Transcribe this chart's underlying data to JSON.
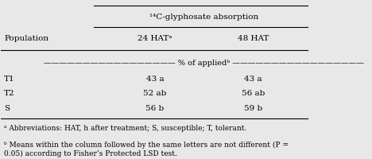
{
  "bg_color": "#e8e8e8",
  "header_main": "¹⁴C-glyphosate absorption",
  "col1_header": "Population",
  "col2_header": "24 HATᵃ",
  "col3_header": "48 HAT",
  "subheader": "————————————————— % of appliedᵇ —————————————————",
  "rows": [
    [
      "T1",
      "43 a",
      "43 a"
    ],
    [
      "T2",
      "52 ab",
      "56 ab"
    ],
    [
      "S",
      "56 b",
      "59 b"
    ]
  ],
  "footnote_a": "ᵃ Abbreviations: HAT, h after treatment; S, susceptible; T, tolerant.",
  "footnote_b": "ᵇ Means within the column followed by the same letters are not different (P =\n0.05) according to Fisher’s Protected LSD test."
}
